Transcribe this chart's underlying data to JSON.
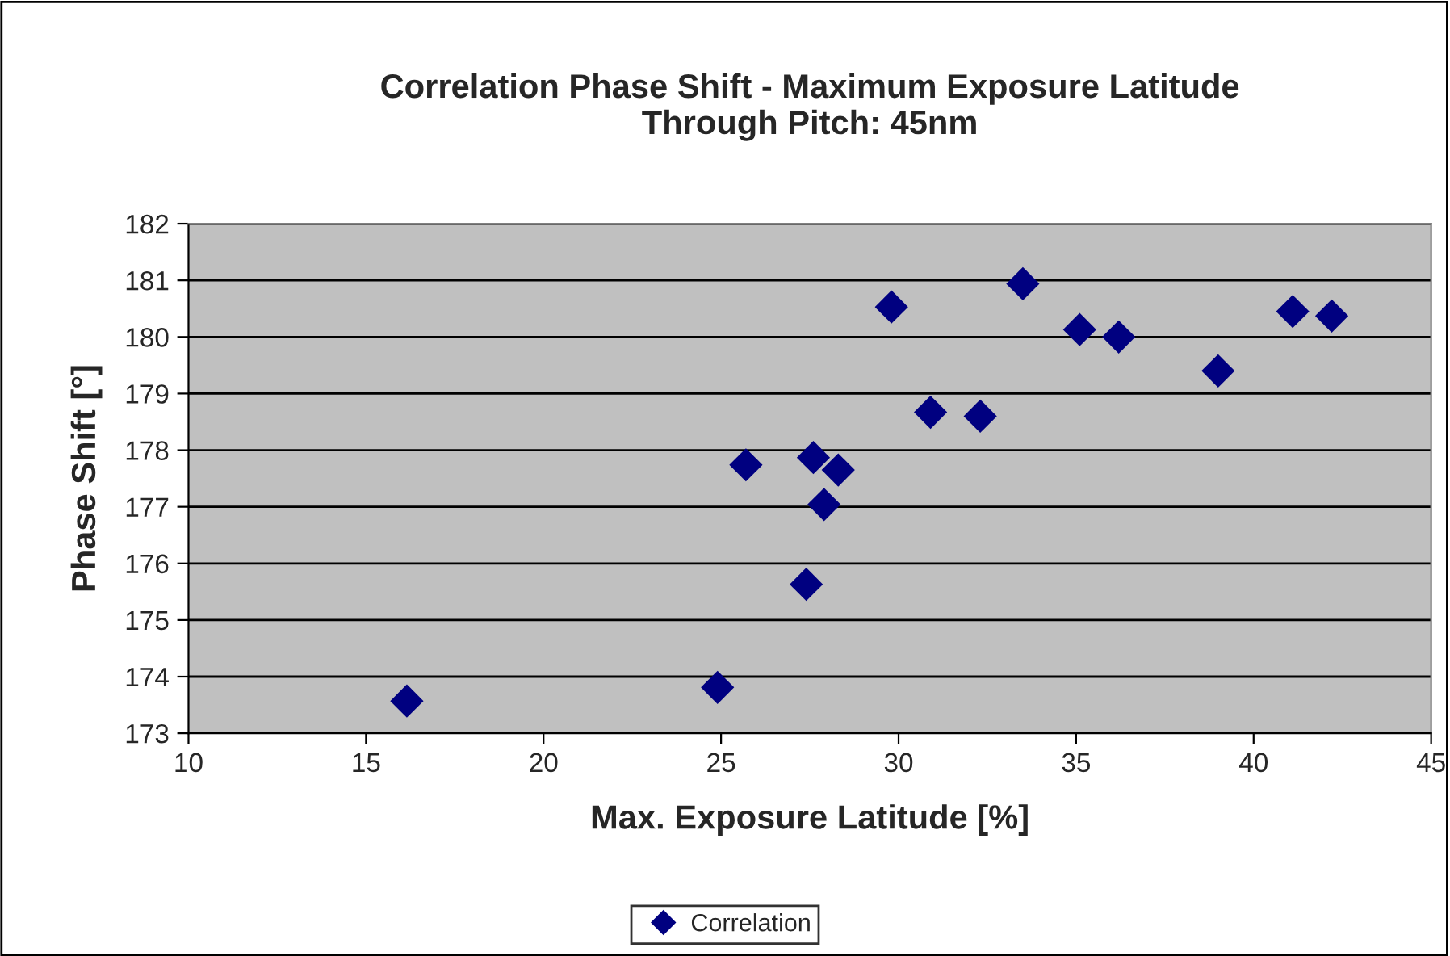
{
  "chart_data": {
    "type": "scatter",
    "title": "Correlation Phase Shift - Maximum Exposure Latitude\nThrough Pitch: 45nm",
    "xlabel": "Max. Exposure Latitude [%]",
    "ylabel": "Phase Shift [°]",
    "xlim": [
      10,
      45
    ],
    "xticks": [
      10,
      15,
      20,
      25,
      30,
      35,
      40,
      45
    ],
    "ylim": [
      173,
      182
    ],
    "yticks": [
      173,
      174,
      175,
      176,
      177,
      178,
      179,
      180,
      181,
      182
    ],
    "grid": "y",
    "legend": "bottom",
    "marker": "diamond",
    "series": [
      {
        "name": "Correlation",
        "color": "#000080",
        "x": [
          16.15,
          24.9,
          25.7,
          27.6,
          28.3,
          27.9,
          27.4,
          29.8,
          30.9,
          32.3,
          33.5,
          35.1,
          36.2,
          39.0,
          41.1,
          42.2
        ],
        "values": [
          173.57,
          173.81,
          177.74,
          177.87,
          177.65,
          177.04,
          175.63,
          180.53,
          178.67,
          178.6,
          180.94,
          180.13,
          180.0,
          179.4,
          180.45,
          180.37
        ]
      }
    ]
  }
}
